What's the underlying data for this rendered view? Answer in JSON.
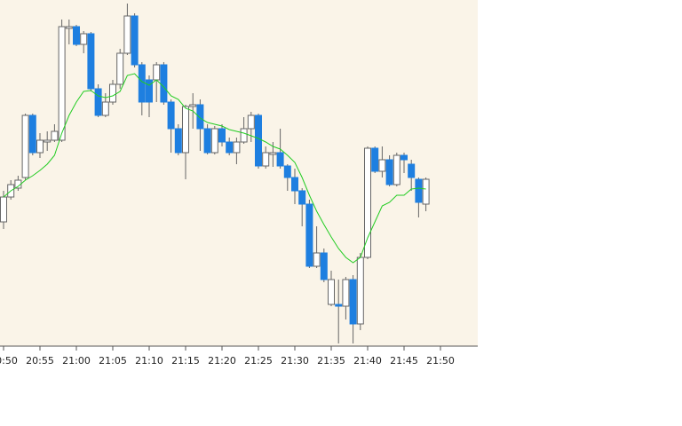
{
  "chart_data": {
    "type": "candlestick",
    "categories": [
      "20:50",
      null,
      null,
      null,
      null,
      "20:55",
      null,
      null,
      null,
      null,
      "21:00",
      null,
      null,
      null,
      null,
      "21:05",
      null,
      null,
      null,
      null,
      "21:10",
      null,
      null,
      null,
      null,
      "21:15",
      null,
      null,
      null,
      null,
      "21:20",
      null,
      null,
      null,
      null,
      "21:25",
      null,
      null,
      null,
      null,
      "21:30",
      null,
      null,
      null,
      null,
      "21:35",
      null,
      null,
      null,
      null,
      "21:40",
      null,
      null,
      null,
      null,
      "21:45",
      null,
      null,
      null,
      null,
      "21:50"
    ],
    "open": [
      150,
      178,
      188,
      200,
      270,
      228,
      240,
      242,
      242,
      368,
      370,
      350,
      362,
      300,
      270,
      285,
      305,
      340,
      382,
      327,
      310,
      310,
      327,
      285,
      255,
      228,
      280,
      282,
      255,
      228,
      255,
      240,
      228,
      240,
      255,
      270,
      213,
      226,
      228,
      213,
      200,
      185,
      170,
      100,
      115,
      57,
      57,
      55,
      85,
      35,
      110,
      233,
      207,
      220,
      192,
      225,
      215,
      198,
      170,
      null,
      null
    ],
    "high": [
      185,
      197,
      202,
      272,
      272,
      250,
      252,
      260,
      378,
      378,
      372,
      365,
      364,
      305,
      295,
      310,
      345,
      396,
      385,
      330,
      315,
      330,
      330,
      288,
      260,
      282,
      295,
      288,
      260,
      258,
      260,
      245,
      245,
      268,
      274,
      272,
      235,
      240,
      255,
      215,
      210,
      188,
      175,
      145,
      120,
      95,
      85,
      88,
      90,
      115,
      235,
      235,
      235,
      225,
      228,
      228,
      220,
      200,
      200,
      null,
      null
    ],
    "low": [
      142,
      175,
      185,
      197,
      225,
      222,
      230,
      240,
      240,
      350,
      348,
      340,
      297,
      268,
      268,
      282,
      300,
      338,
      324,
      270,
      268,
      285,
      282,
      228,
      225,
      198,
      255,
      230,
      226,
      226,
      235,
      225,
      215,
      238,
      240,
      210,
      210,
      212,
      210,
      185,
      170,
      145,
      98,
      98,
      82,
      55,
      13,
      40,
      13,
      28,
      108,
      205,
      200,
      190,
      190,
      205,
      185,
      155,
      162,
      null,
      null
    ],
    "close": [
      178,
      192,
      197,
      270,
      228,
      242,
      242,
      252,
      370,
      370,
      350,
      362,
      300,
      270,
      285,
      305,
      340,
      382,
      327,
      285,
      285,
      327,
      285,
      255,
      228,
      280,
      282,
      255,
      228,
      255,
      240,
      228,
      240,
      255,
      270,
      213,
      228,
      228,
      213,
      200,
      185,
      170,
      100,
      115,
      85,
      85,
      55,
      85,
      35,
      110,
      233,
      207,
      220,
      192,
      225,
      220,
      200,
      172,
      198,
      null,
      null
    ],
    "up_color": "#ffffff",
    "down_color": "#1e7fe0",
    "line": {
      "color": "#22cc22",
      "values": [
        178,
        185,
        190,
        197,
        202,
        208,
        215,
        225,
        250,
        270,
        285,
        297,
        298,
        292,
        290,
        292,
        297,
        315,
        317,
        308,
        304,
        310,
        302,
        292,
        288,
        278,
        275,
        267,
        262,
        260,
        258,
        254,
        252,
        250,
        247,
        244,
        240,
        235,
        232,
        225,
        217,
        200,
        180,
        162,
        147,
        133,
        120,
        110,
        104,
        110,
        132,
        150,
        168,
        172,
        180,
        180,
        187,
        188,
        187,
        null,
        null
      ]
    },
    "ylim": [
      0,
      400
    ]
  }
}
